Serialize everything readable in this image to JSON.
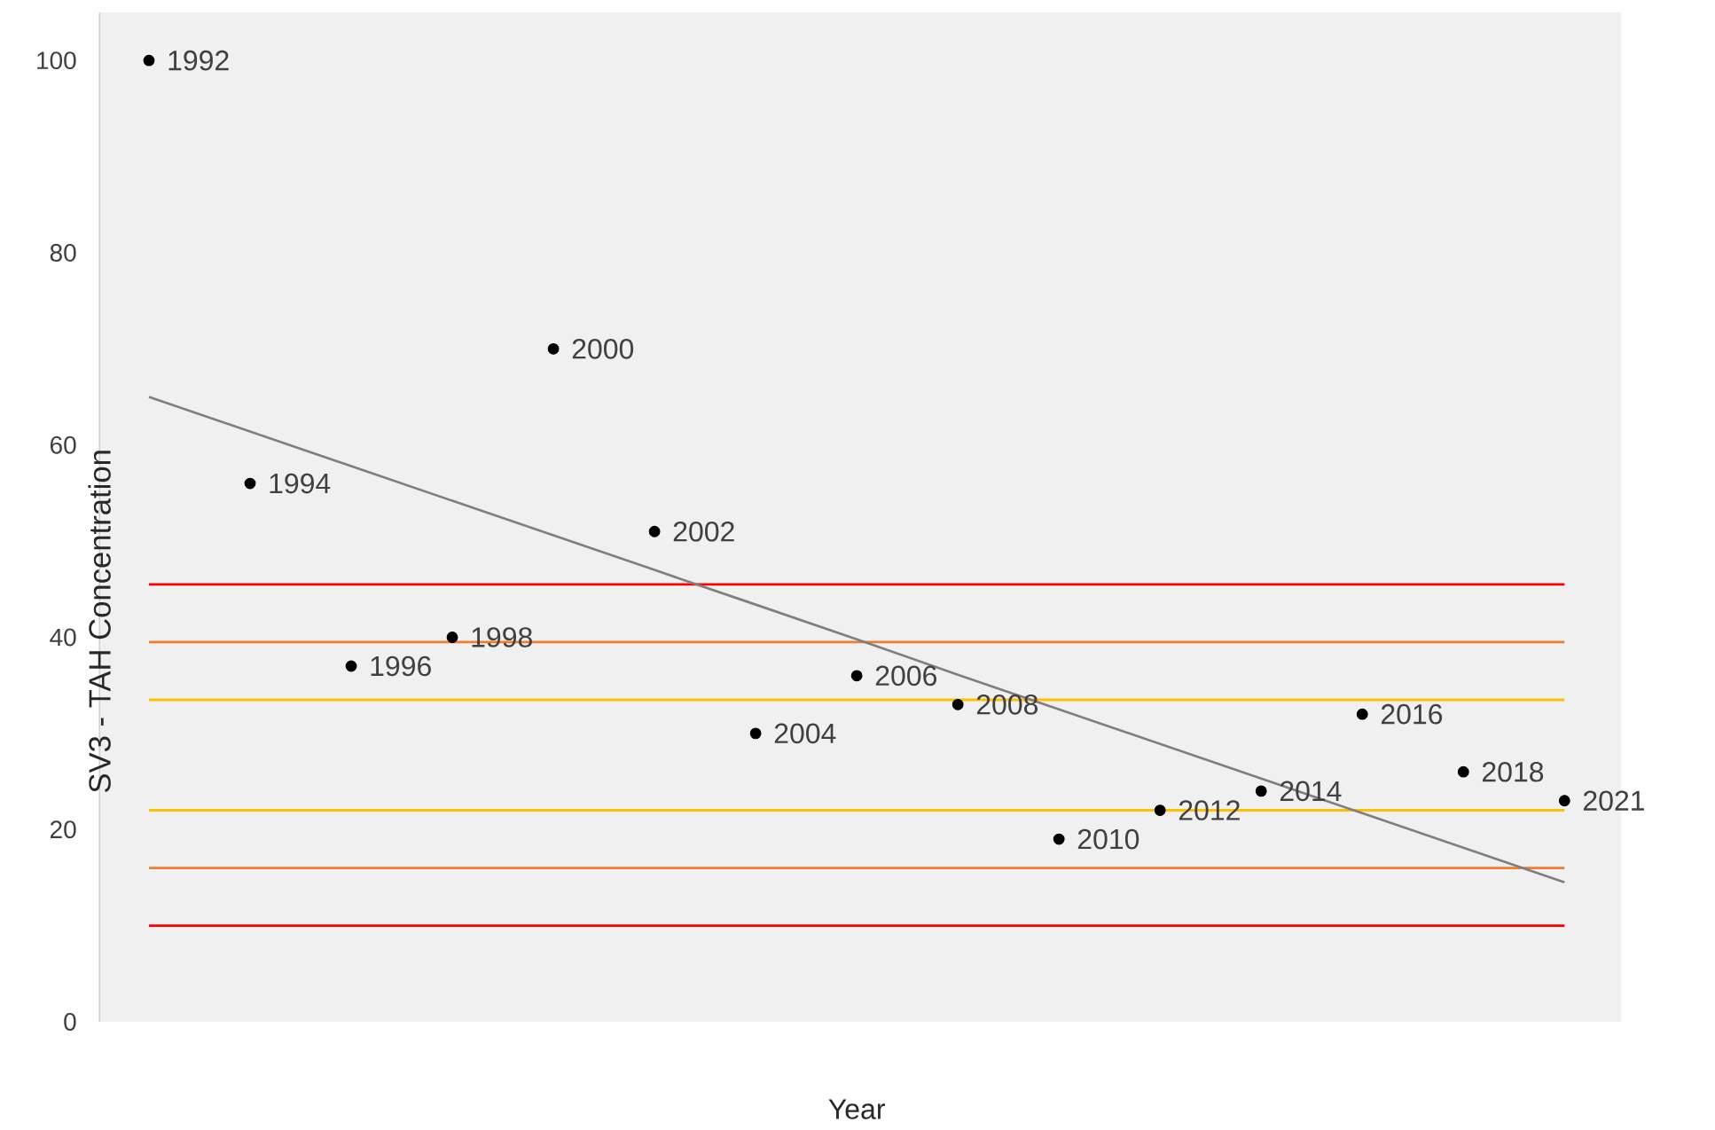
{
  "chart_data": {
    "type": "scatter",
    "xlabel": "Year",
    "ylabel": "SV3 - TAH Concentration",
    "categories": [
      "1992",
      "1994",
      "1996",
      "1998",
      "2000",
      "2002",
      "2004",
      "2006",
      "2008",
      "2010",
      "2012",
      "2014",
      "2016",
      "2018",
      "2021"
    ],
    "ylim": [
      0,
      105
    ],
    "yticks": [
      0,
      20,
      40,
      60,
      80,
      100
    ],
    "series": [
      {
        "color": "#000000",
        "marker": "circle",
        "values": [
          100,
          56,
          37,
          40,
          70,
          51,
          30,
          36,
          33,
          19,
          22,
          24,
          32,
          26,
          23
        ]
      },
      {
        "type": "line",
        "color": "#7f7f7f",
        "marker": "none",
        "values": [
          65,
          61.4,
          57.8,
          54.2,
          50.6,
          47,
          43.4,
          39.8,
          36.1,
          32.5,
          28.9,
          25.3,
          21.7,
          18.1,
          14.5
        ]
      }
    ],
    "ref_lines": [
      {
        "axis": "y",
        "value": 45.5,
        "color": "#ff0000"
      },
      {
        "axis": "y",
        "value": 39.5,
        "color": "#ed7d31"
      },
      {
        "axis": "y",
        "value": 33.5,
        "color": "#ffc000"
      },
      {
        "axis": "y",
        "value": 22,
        "color": "#ffc000"
      },
      {
        "axis": "y",
        "value": 16,
        "color": "#ed7d31"
      },
      {
        "axis": "y",
        "value": 10,
        "color": "#ff0000"
      }
    ]
  }
}
